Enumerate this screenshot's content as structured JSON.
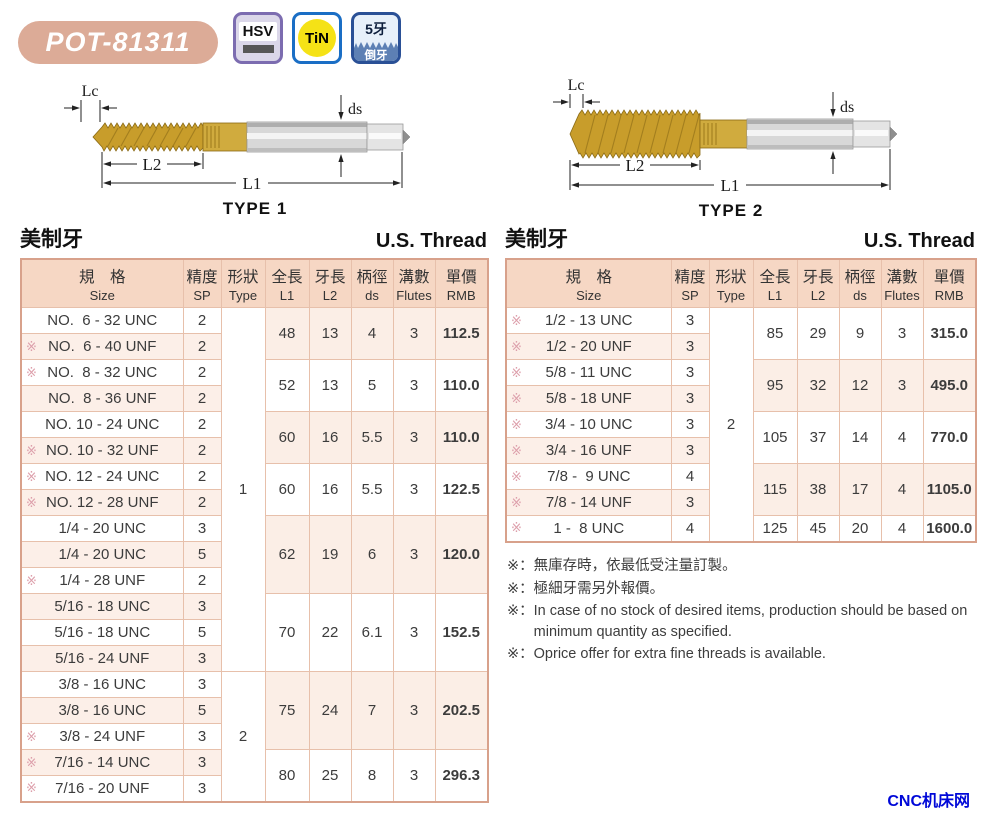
{
  "header": {
    "model": "POT-81311",
    "badges": [
      {
        "id": "hsv",
        "label": "HSV"
      },
      {
        "id": "tin",
        "label": "TiN"
      },
      {
        "id": "five-flute",
        "top": "5牙",
        "bottom": "倒牙"
      }
    ]
  },
  "diagrams": [
    {
      "type_label": "TYPE 1",
      "dims": {
        "lc": "Lc",
        "ds": "ds",
        "l2": "L2",
        "l1": "L1"
      }
    },
    {
      "type_label": "TYPE 2",
      "dims": {
        "lc": "Lc",
        "ds": "ds",
        "l2": "L2",
        "l1": "L1"
      }
    }
  ],
  "tables": [
    {
      "title_zh": "美制牙",
      "title_en": "U.S. Thread",
      "star_mark": "※",
      "columns": [
        {
          "zh": "規　格",
          "en": "Size"
        },
        {
          "zh": "精度",
          "en": "SP"
        },
        {
          "zh": "形狀",
          "en": "Type"
        },
        {
          "zh": "全長",
          "en": "L1"
        },
        {
          "zh": "牙長",
          "en": "L2"
        },
        {
          "zh": "柄徑",
          "en": "ds"
        },
        {
          "zh": "溝數",
          "en": "Flutes"
        },
        {
          "zh": "單價",
          "en": "RMB"
        }
      ],
      "rows": [
        {
          "size": "NO.  6 - 32 UNC",
          "sp": "2",
          "star": false
        },
        {
          "size": "NO.  6 - 40 UNF",
          "sp": "2",
          "star": true
        },
        {
          "size": "NO.  8 - 32 UNC",
          "sp": "2",
          "star": true
        },
        {
          "size": "NO.  8 - 36 UNF",
          "sp": "2",
          "star": false
        },
        {
          "size": "NO. 10 - 24 UNC",
          "sp": "2",
          "star": false
        },
        {
          "size": "NO. 10 - 32 UNF",
          "sp": "2",
          "star": true
        },
        {
          "size": "NO. 12 - 24 UNC",
          "sp": "2",
          "star": true
        },
        {
          "size": "NO. 12 - 28 UNF",
          "sp": "2",
          "star": true
        },
        {
          "size": "1/4 - 20 UNC",
          "sp": "3",
          "star": false
        },
        {
          "size": "1/4 - 20 UNC",
          "sp": "5",
          "star": false
        },
        {
          "size": "1/4 - 28 UNF",
          "sp": "2",
          "star": true
        },
        {
          "size": "5/16 - 18 UNC",
          "sp": "3",
          "star": false
        },
        {
          "size": "5/16 - 18 UNC",
          "sp": "5",
          "star": false
        },
        {
          "size": "5/16 - 24 UNF",
          "sp": "3",
          "star": false
        },
        {
          "size": "3/8 - 16 UNC",
          "sp": "3",
          "star": false
        },
        {
          "size": "3/8 - 16 UNC",
          "sp": "5",
          "star": false
        },
        {
          "size": "3/8 - 24 UNF",
          "sp": "3",
          "star": true
        },
        {
          "size": "7/16 - 14 UNC",
          "sp": "3",
          "star": true
        },
        {
          "size": "7/16 - 20 UNF",
          "sp": "3",
          "star": true
        }
      ],
      "type_spans": [
        {
          "label": "1",
          "start": 0,
          "count": 14
        },
        {
          "label": "2",
          "start": 14,
          "count": 5
        }
      ],
      "groups": [
        {
          "start": 0,
          "count": 2,
          "l1": "48",
          "l2": "13",
          "ds": "4",
          "flutes": "3",
          "rmb": "112.5"
        },
        {
          "start": 2,
          "count": 2,
          "l1": "52",
          "l2": "13",
          "ds": "5",
          "flutes": "3",
          "rmb": "110.0"
        },
        {
          "start": 4,
          "count": 2,
          "l1": "60",
          "l2": "16",
          "ds": "5.5",
          "flutes": "3",
          "rmb": "110.0"
        },
        {
          "start": 6,
          "count": 2,
          "l1": "60",
          "l2": "16",
          "ds": "5.5",
          "flutes": "3",
          "rmb": "122.5"
        },
        {
          "start": 8,
          "count": 3,
          "l1": "62",
          "l2": "19",
          "ds": "6",
          "flutes": "3",
          "rmb": "120.0"
        },
        {
          "start": 11,
          "count": 3,
          "l1": "70",
          "l2": "22",
          "ds": "6.1",
          "flutes": "3",
          "rmb": "152.5"
        },
        {
          "start": 14,
          "count": 3,
          "l1": "75",
          "l2": "24",
          "ds": "7",
          "flutes": "3",
          "rmb": "202.5"
        },
        {
          "start": 17,
          "count": 2,
          "l1": "80",
          "l2": "25",
          "ds": "8",
          "flutes": "3",
          "rmb": "296.3"
        }
      ]
    },
    {
      "title_zh": "美制牙",
      "title_en": "U.S. Thread",
      "star_mark": "※",
      "columns": [
        {
          "zh": "規　格",
          "en": "Size"
        },
        {
          "zh": "精度",
          "en": "SP"
        },
        {
          "zh": "形狀",
          "en": "Type"
        },
        {
          "zh": "全長",
          "en": "L1"
        },
        {
          "zh": "牙長",
          "en": "L2"
        },
        {
          "zh": "柄徑",
          "en": "ds"
        },
        {
          "zh": "溝數",
          "en": "Flutes"
        },
        {
          "zh": "單價",
          "en": "RMB"
        }
      ],
      "rows": [
        {
          "size": "1/2 - 13 UNC",
          "sp": "3",
          "star": true
        },
        {
          "size": "1/2 - 20 UNF",
          "sp": "3",
          "star": true
        },
        {
          "size": "5/8 - 11 UNC",
          "sp": "3",
          "star": true
        },
        {
          "size": "5/8 - 18 UNF",
          "sp": "3",
          "star": true
        },
        {
          "size": "3/4 - 10 UNC",
          "sp": "3",
          "star": true
        },
        {
          "size": "3/4 - 16 UNF",
          "sp": "3",
          "star": true
        },
        {
          "size": "7/8 -  9 UNC",
          "sp": "4",
          "star": true
        },
        {
          "size": "7/8 - 14 UNF",
          "sp": "3",
          "star": true
        },
        {
          "size": "1 -  8 UNC",
          "sp": "4",
          "star": true
        }
      ],
      "type_spans": [
        {
          "label": "2",
          "start": 0,
          "count": 9
        }
      ],
      "groups": [
        {
          "start": 0,
          "count": 2,
          "l1": "85",
          "l2": "29",
          "ds": "9",
          "flutes": "3",
          "rmb": "315.0"
        },
        {
          "start": 2,
          "count": 2,
          "l1": "95",
          "l2": "32",
          "ds": "12",
          "flutes": "3",
          "rmb": "495.0"
        },
        {
          "start": 4,
          "count": 2,
          "l1": "105",
          "l2": "37",
          "ds": "14",
          "flutes": "4",
          "rmb": "770.0"
        },
        {
          "start": 6,
          "count": 2,
          "l1": "115",
          "l2": "38",
          "ds": "17",
          "flutes": "4",
          "rmb": "1105.0"
        },
        {
          "start": 8,
          "count": 1,
          "l1": "125",
          "l2": "45",
          "ds": "20",
          "flutes": "4",
          "rmb": "1600.0"
        }
      ]
    }
  ],
  "footnotes": [
    {
      "mark": "※：",
      "text": "無庫存時，依最低受注量訂製。"
    },
    {
      "mark": "※：",
      "text": "極細牙需另外報價。"
    },
    {
      "mark": "※：",
      "text": "In case of no stock of desired items, production should be based on minimum quantity as specified."
    },
    {
      "mark": "※：",
      "text": "Oprice offer for extra fine threads is available."
    }
  ],
  "watermark": "CNC机床网",
  "colors": {
    "accent_salmon": "#dcab97",
    "table_border": "#d8a18b",
    "grid_line": "#e7c0ab",
    "header_peach": "#f6d7c4",
    "row_pink": "#fcefe8",
    "star_pink": "#dd9fab",
    "hsv_purple": "#7c6cb0",
    "tin_blue": "#1a6ec5",
    "tin_yellow": "#f5e216",
    "teeth_blue": "#2a5096",
    "teeth_fill": "#5d80b4",
    "gold_thread": "#c89d2b",
    "watermark_blue": "#0008d8"
  }
}
